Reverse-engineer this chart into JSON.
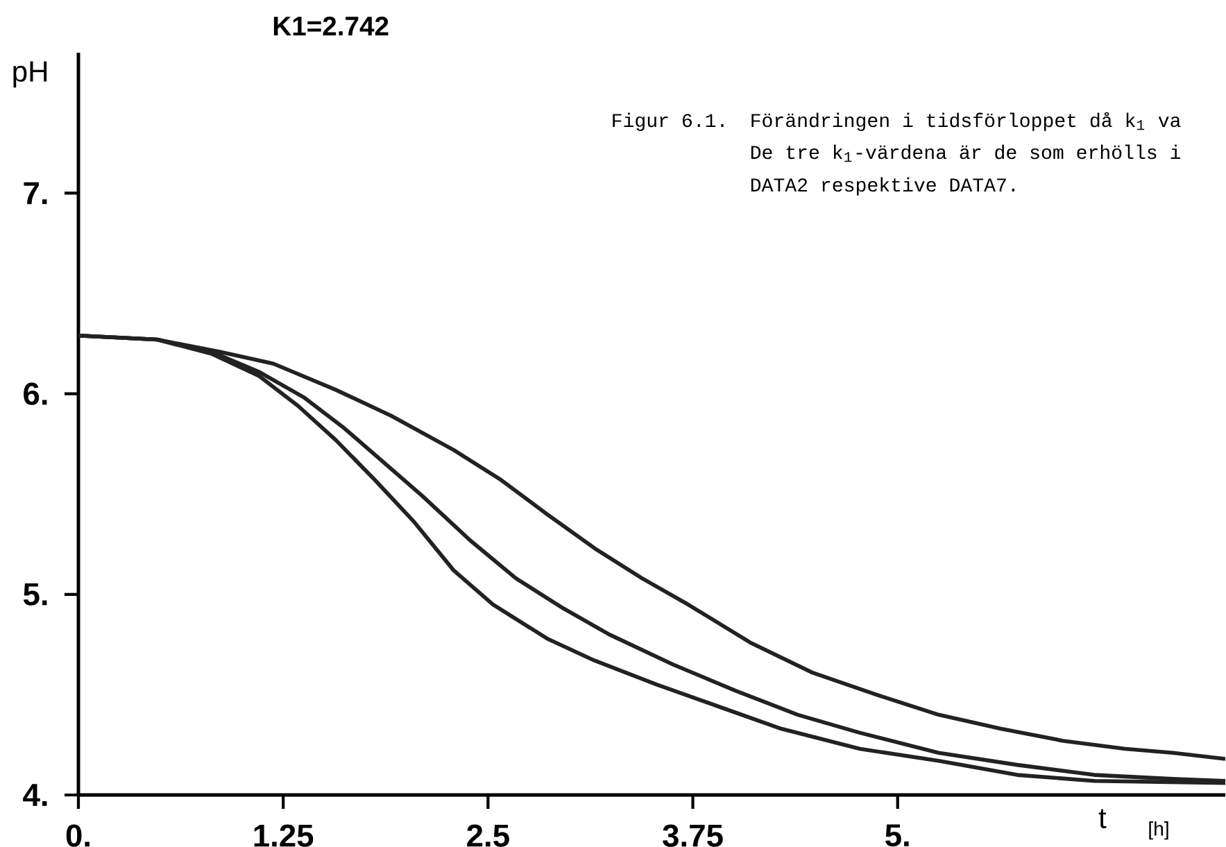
{
  "chart_data": {
    "type": "line",
    "title": "K1=2.742",
    "xlabel": "t",
    "ylabel": "pH",
    "annotations": [
      "[h]",
      "Figur 6.1.",
      "Förändringen i tidsförloppet då k$_{1}$ va",
      "De tre k$_{1}$-värdena är de som erhölls i",
      "DATA2 respektive DATA7."
    ],
    "xlim": [
      0,
      7.0
    ],
    "ylim": [
      4,
      7.7
    ],
    "xticks": [
      {
        "value": 0,
        "label": "0."
      },
      1.25,
      2.5,
      3.75,
      {
        "value": 5,
        "label": "5."
      }
    ],
    "yticks": [
      {
        "value": 4,
        "label": "4."
      },
      {
        "value": 5,
        "label": "5."
      },
      {
        "value": 6,
        "label": "6."
      },
      {
        "value": 7,
        "label": "7."
      }
    ],
    "grid": false,
    "marker": "none",
    "line_style": "solid",
    "series": [
      {
        "color": "#222222",
        "x": [
          0,
          0.48,
          0.86,
          1.19,
          1.57,
          1.91,
          2.29,
          2.58,
          2.86,
          3.15,
          3.44,
          3.72,
          4.1,
          4.48,
          4.87,
          5.25,
          5.63,
          6.01,
          6.39,
          6.68,
          7.0
        ],
        "values": [
          6.29,
          6.27,
          6.21,
          6.15,
          6.02,
          5.89,
          5.72,
          5.57,
          5.4,
          5.23,
          5.08,
          4.95,
          4.76,
          4.61,
          4.5,
          4.4,
          4.33,
          4.27,
          4.23,
          4.21,
          4.18
        ]
      },
      {
        "color": "#222222",
        "x": [
          0,
          0.48,
          0.81,
          1.1,
          1.38,
          1.62,
          1.86,
          2.1,
          2.39,
          2.67,
          2.96,
          3.24,
          3.63,
          4.01,
          4.39,
          4.77,
          5.25,
          5.73,
          6.2,
          6.68,
          7.0
        ],
        "values": [
          6.29,
          6.27,
          6.21,
          6.11,
          5.98,
          5.83,
          5.66,
          5.49,
          5.27,
          5.08,
          4.93,
          4.8,
          4.65,
          4.52,
          4.4,
          4.31,
          4.21,
          4.15,
          4.1,
          4.08,
          4.07
        ]
      },
      {
        "color": "#222222",
        "x": [
          0,
          0.48,
          0.81,
          1.1,
          1.34,
          1.57,
          1.81,
          2.05,
          2.29,
          2.53,
          2.86,
          3.15,
          3.53,
          3.91,
          4.29,
          4.77,
          5.25,
          5.73,
          6.2,
          7.0
        ],
        "values": [
          6.29,
          6.27,
          6.2,
          6.09,
          5.94,
          5.77,
          5.57,
          5.36,
          5.12,
          4.95,
          4.78,
          4.67,
          4.55,
          4.44,
          4.33,
          4.23,
          4.17,
          4.1,
          4.07,
          4.06
        ]
      }
    ]
  }
}
